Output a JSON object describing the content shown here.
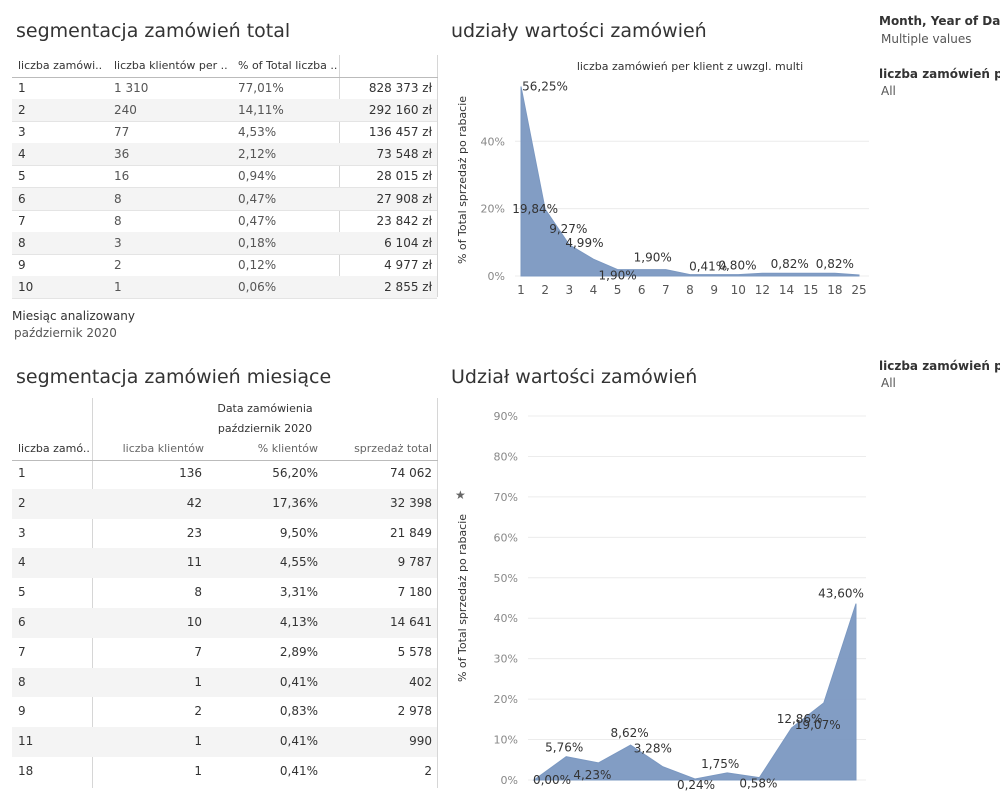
{
  "total": {
    "title": "segmentacja zamówień total",
    "headers": [
      "liczba zamówi..",
      "liczba klientów per ..",
      "% of Total liczba ..",
      ""
    ],
    "rows": [
      [
        "1",
        "1 310",
        "77,01%",
        "828 373 zł"
      ],
      [
        "2",
        "240",
        "14,11%",
        "292 160 zł"
      ],
      [
        "3",
        "77",
        "4,53%",
        "136 457 zł"
      ],
      [
        "4",
        "36",
        "2,12%",
        "73 548 zł"
      ],
      [
        "5",
        "16",
        "0,94%",
        "28 015 zł"
      ],
      [
        "6",
        "8",
        "0,47%",
        "27 908 zł"
      ],
      [
        "7",
        "8",
        "0,47%",
        "23 842 zł"
      ],
      [
        "8",
        "3",
        "0,18%",
        "6 104 zł"
      ],
      [
        "9",
        "2",
        "0,12%",
        "4 977 zł"
      ],
      [
        "10",
        "1",
        "0,06%",
        "2 855 zł"
      ]
    ],
    "month_label": "Miesiąc analizowany",
    "month_value": "październik 2020"
  },
  "monthly": {
    "title": "segmentacja zamówień miesiące",
    "group_header": "Data zamówienia",
    "group_sub": "październik 2020",
    "headers": [
      "liczba zamó..",
      "liczba klientów",
      "% klientów",
      "sprzedaż total"
    ],
    "rows": [
      [
        "1",
        "136",
        "56,20%",
        "74 062"
      ],
      [
        "2",
        "42",
        "17,36%",
        "32 398"
      ],
      [
        "3",
        "23",
        "9,50%",
        "21 849"
      ],
      [
        "4",
        "11",
        "4,55%",
        "9 787"
      ],
      [
        "5",
        "8",
        "3,31%",
        "7 180"
      ],
      [
        "6",
        "10",
        "4,13%",
        "14 641"
      ],
      [
        "7",
        "7",
        "2,89%",
        "5 578"
      ],
      [
        "8",
        "1",
        "0,41%",
        "402"
      ],
      [
        "9",
        "2",
        "0,83%",
        "2 978"
      ],
      [
        "11",
        "1",
        "0,41%",
        "990"
      ],
      [
        "18",
        "1",
        "0,41%",
        "2"
      ]
    ]
  },
  "filters": {
    "f1_title": "Month, Year of Da..",
    "f1_value": "Multiple values",
    "f2_title": "liczba zamówień p..",
    "f2_value": "All",
    "f3_title": "liczba zamówień p..",
    "f3_value": "All"
  },
  "chart_data": [
    {
      "type": "area",
      "heading": "udziały wartości zamówień",
      "title": "liczba zamówień per klient z uwzgl. multi",
      "ylabel": "% of Total sprzedaż po rabacie",
      "xlabel": "",
      "categories": [
        "1",
        "2",
        "3",
        "4",
        "5",
        "6",
        "7",
        "8",
        "9",
        "10",
        "12",
        "14",
        "15",
        "18",
        "25"
      ],
      "values": [
        56.25,
        19.84,
        9.27,
        4.99,
        1.9,
        1.9,
        1.9,
        0.41,
        0.41,
        0.41,
        0.8,
        0.82,
        0.82,
        0.82,
        0.3
      ],
      "labels": [
        "56,25%",
        "19,84%",
        "9,27%",
        "4,99%",
        "1,90%",
        "1,90%",
        "",
        "",
        "0,41%",
        "",
        "0,80%",
        "",
        "0,82%",
        "0,82%",
        ""
      ],
      "yticks": [
        "0%",
        "20%",
        "40%"
      ],
      "ytick_values": [
        0,
        20,
        40
      ],
      "ylim": [
        0,
        57
      ],
      "grid": true,
      "color": "#7b98c1"
    },
    {
      "type": "area",
      "heading": "Udział wartości zamówień",
      "ylabel": "% of Total sprzedaż po rabacie",
      "xlabel": "",
      "values": [
        0.0,
        5.76,
        4.23,
        8.62,
        3.28,
        0.24,
        1.75,
        0.58,
        12.86,
        19.07,
        43.6
      ],
      "labels": [
        "0,00%",
        "5,76%",
        "4,23%",
        "8,62%",
        "3,28%",
        "0,24%",
        "1,75%",
        "0,58%",
        "12,86%",
        "19,07%",
        "43,60%"
      ],
      "yticks": [
        "0%",
        "10%",
        "20%",
        "30%",
        "40%",
        "50%",
        "60%",
        "70%",
        "80%",
        "90%"
      ],
      "ytick_values": [
        0,
        10,
        20,
        30,
        40,
        50,
        60,
        70,
        80,
        90
      ],
      "ylim": [
        0,
        90
      ],
      "grid": true,
      "color": "#7b98c1"
    }
  ]
}
